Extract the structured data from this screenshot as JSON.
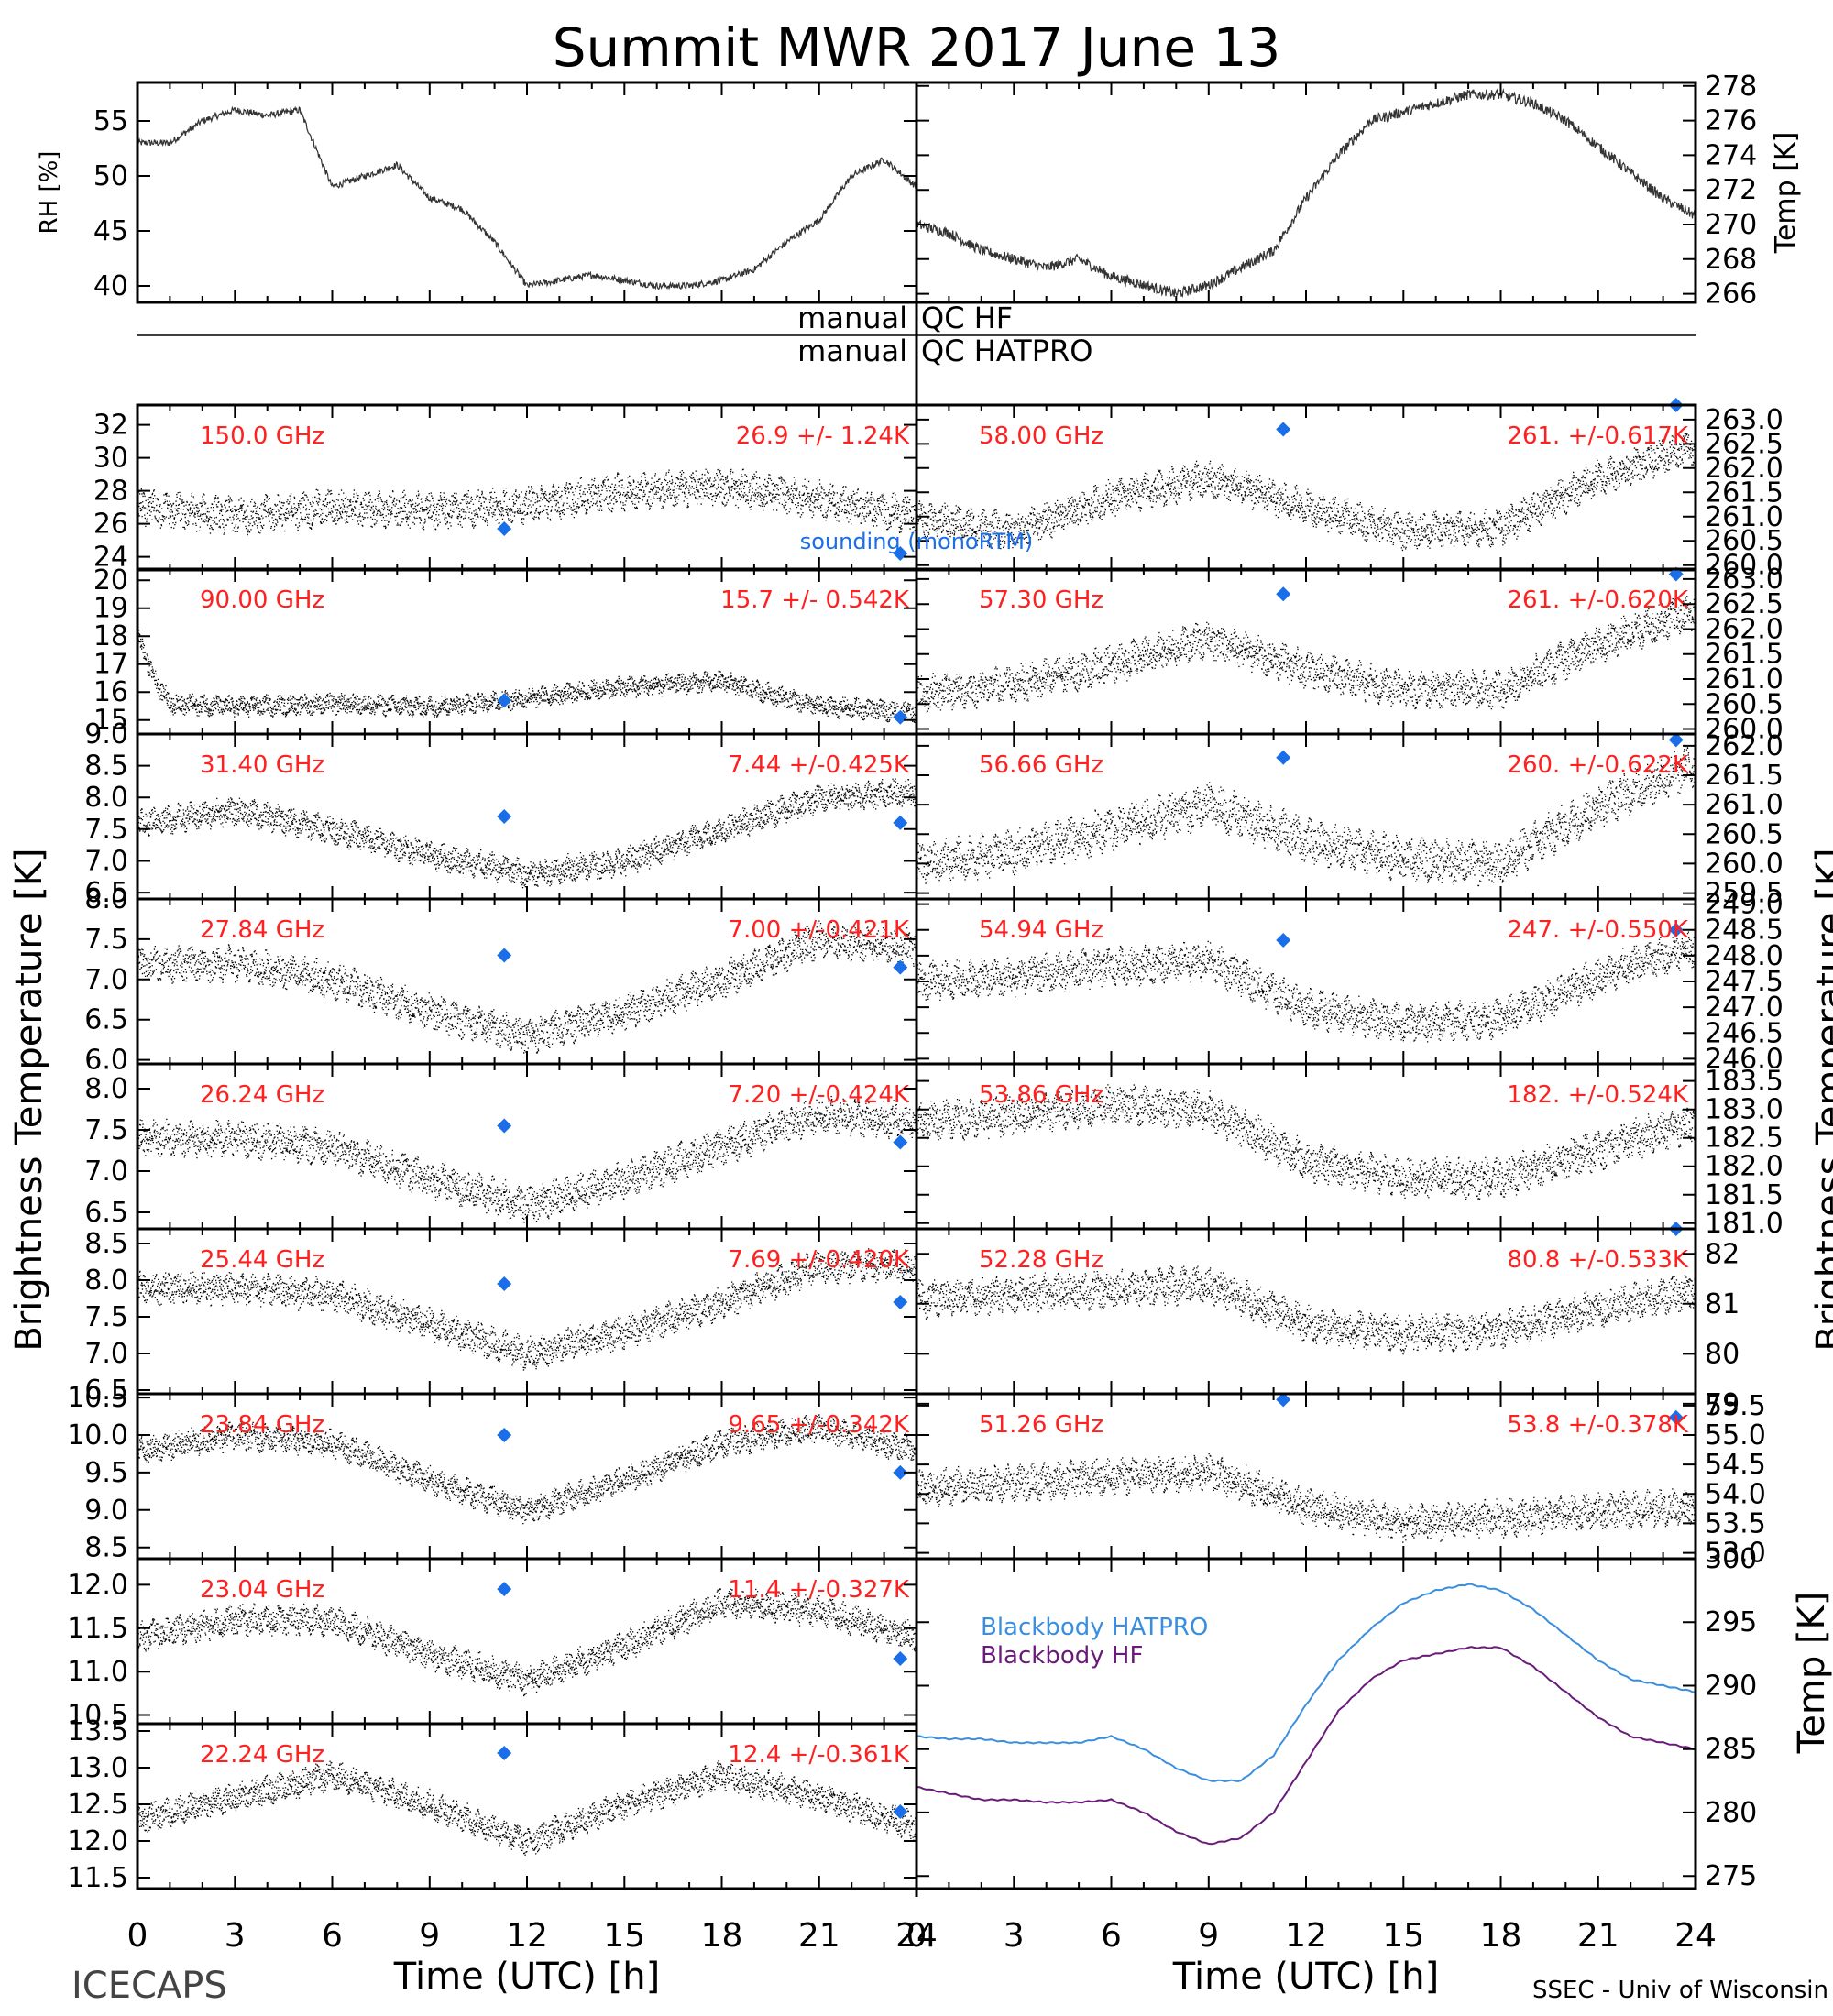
{
  "title": "Summit MWR 2017 June 13",
  "footer": {
    "left": "ICECAPS",
    "right": "SSEC - Univ of Wisconsin"
  },
  "xlabel": "Time (UTC) [h]",
  "left_ylabel": "Brightness Temperature [K]",
  "right_ylabel": "Brightness Temperature [K]",
  "qc": {
    "left": [
      "manual",
      "manual"
    ],
    "right": [
      "QC HF",
      "QC HATPRO"
    ]
  },
  "sounding_label": "sounding (monoRTM)",
  "colors": {
    "trace": "#000000",
    "sounding": "#1a6ee8",
    "label": "#ff2020",
    "hatpro": "#3a8ee0",
    "hf": "#6a1b7a"
  },
  "chart_data": [
    {
      "type": "line",
      "panel": "met-rh",
      "ylabel": "RH [%]",
      "xlim": [
        0,
        24
      ],
      "ylim": [
        38.5,
        58.5
      ],
      "yticks": [
        "40",
        "45",
        "50",
        "55"
      ],
      "x": [
        0,
        1,
        2,
        3,
        4,
        5,
        6,
        7,
        8,
        9,
        10,
        11,
        12,
        13,
        14,
        15,
        16,
        17,
        18,
        19,
        20,
        21,
        22,
        23,
        24
      ],
      "y": [
        53,
        53,
        55,
        56,
        55.5,
        56,
        49,
        50,
        51,
        48,
        47,
        44,
        40,
        40.5,
        41,
        40.5,
        40,
        40,
        40.5,
        41.5,
        44,
        46,
        50,
        51.5,
        49
      ]
    },
    {
      "type": "line",
      "panel": "met-temp",
      "ylabel": "Temp [K]",
      "xlim": [
        0,
        24
      ],
      "ylim": [
        265.5,
        278.2
      ],
      "yticks": [
        "266",
        "268",
        "270",
        "272",
        "274",
        "276",
        "278"
      ],
      "x": [
        0,
        1,
        2,
        3,
        4,
        5,
        6,
        7,
        8,
        9,
        10,
        11,
        12,
        13,
        14,
        15,
        16,
        17,
        18,
        19,
        20,
        21,
        22,
        23,
        24
      ],
      "y": [
        270,
        269.5,
        268.5,
        268,
        267.5,
        268,
        267,
        266.5,
        266,
        266.5,
        267.5,
        268.5,
        271.5,
        274,
        276,
        276.5,
        277,
        277.5,
        277.5,
        277,
        276,
        274.5,
        273,
        271.5,
        270.5
      ]
    },
    {
      "type": "scatter",
      "panel": "left-1",
      "frequency": "150.0 GHz",
      "stat": "26.9 +/-  1.24K",
      "xlim": [
        0,
        24
      ],
      "ylim": [
        23.2,
        33.2
      ],
      "yticks": [
        "24",
        "26",
        "28",
        "30",
        "32"
      ],
      "noise": 0.9,
      "x": [
        0,
        3,
        6,
        9,
        12,
        15,
        18,
        21,
        24
      ],
      "y": [
        27,
        26.5,
        27,
        26.8,
        27.2,
        28,
        28.3,
        27.5,
        26.5
      ],
      "sounding": [
        {
          "x": 11.3,
          "y": 25.7
        },
        {
          "x": 23.5,
          "y": 24.2
        }
      ]
    },
    {
      "type": "scatter",
      "panel": "left-2",
      "frequency": "90.00 GHz",
      "stat": "15.7 +/- 0.542K",
      "xlim": [
        0,
        24
      ],
      "ylim": [
        14.5,
        20.4
      ],
      "yticks": [
        "15",
        "16",
        "17",
        "18",
        "19",
        "20"
      ],
      "noise": 0.3,
      "x": [
        0,
        0.5,
        1,
        3,
        6,
        9,
        12,
        15,
        18,
        21,
        24
      ],
      "y": [
        18,
        16.5,
        15.6,
        15.5,
        15.6,
        15.5,
        15.8,
        16.2,
        16.4,
        15.5,
        15.3
      ],
      "sounding": [
        {
          "x": 11.3,
          "y": 15.7
        },
        {
          "x": 23.5,
          "y": 15.1
        }
      ]
    },
    {
      "type": "scatter",
      "panel": "left-3",
      "frequency": "31.40 GHz",
      "stat": "7.44 +/-0.425K",
      "xlim": [
        0,
        24
      ],
      "ylim": [
        6.4,
        9.0
      ],
      "yticks": [
        "6.5",
        "7.0",
        "7.5",
        "8.0",
        "8.5",
        "9.0"
      ],
      "noise": 0.18,
      "x": [
        0,
        3,
        6,
        9,
        12,
        15,
        18,
        21,
        24
      ],
      "y": [
        7.6,
        7.8,
        7.5,
        7.1,
        6.8,
        7.0,
        7.5,
        8.0,
        8.1
      ],
      "sounding": [
        {
          "x": 11.3,
          "y": 7.7
        },
        {
          "x": 23.5,
          "y": 7.6
        }
      ]
    },
    {
      "type": "scatter",
      "panel": "left-4",
      "frequency": "27.84 GHz",
      "stat": "7.00 +/-0.421K",
      "xlim": [
        0,
        24
      ],
      "ylim": [
        5.95,
        8.0
      ],
      "yticks": [
        "6.0",
        "6.5",
        "7.0",
        "7.5",
        "8.0"
      ],
      "noise": 0.18,
      "x": [
        0,
        3,
        6,
        9,
        12,
        15,
        18,
        21,
        24
      ],
      "y": [
        7.2,
        7.2,
        7.0,
        6.6,
        6.3,
        6.6,
        7.0,
        7.5,
        7.4
      ],
      "sounding": [
        {
          "x": 11.3,
          "y": 7.3
        },
        {
          "x": 23.5,
          "y": 7.15
        }
      ]
    },
    {
      "type": "scatter",
      "panel": "left-5",
      "frequency": "26.24 GHz",
      "stat": "7.20 +/-0.424K",
      "xlim": [
        0,
        24
      ],
      "ylim": [
        6.3,
        8.3
      ],
      "yticks": [
        "6.5",
        "7.0",
        "7.5",
        "8.0"
      ],
      "noise": 0.18,
      "x": [
        0,
        3,
        6,
        9,
        12,
        15,
        18,
        21,
        24
      ],
      "y": [
        7.4,
        7.4,
        7.3,
        6.9,
        6.6,
        6.9,
        7.3,
        7.7,
        7.6
      ],
      "sounding": [
        {
          "x": 11.3,
          "y": 7.55
        },
        {
          "x": 23.5,
          "y": 7.35
        }
      ]
    },
    {
      "type": "scatter",
      "panel": "left-6",
      "frequency": "25.44 GHz",
      "stat": "7.69 +/-0.420K",
      "xlim": [
        0,
        24
      ],
      "ylim": [
        6.45,
        8.7
      ],
      "yticks": [
        "6.5",
        "7.0",
        "7.5",
        "8.0",
        "8.5"
      ],
      "noise": 0.18,
      "x": [
        0,
        3,
        6,
        9,
        12,
        15,
        18,
        21,
        24
      ],
      "y": [
        7.9,
        7.9,
        7.8,
        7.4,
        7.0,
        7.3,
        7.7,
        8.2,
        8.2
      ],
      "sounding": [
        {
          "x": 11.3,
          "y": 7.95
        },
        {
          "x": 23.5,
          "y": 7.7
        }
      ]
    },
    {
      "type": "scatter",
      "panel": "left-7",
      "frequency": "23.84 GHz",
      "stat": "9.65 +/-0.342K",
      "xlim": [
        0,
        24
      ],
      "ylim": [
        8.35,
        10.55
      ],
      "yticks": [
        "8.5",
        "9.0",
        "9.5",
        "10.0",
        "10.5"
      ],
      "noise": 0.15,
      "x": [
        0,
        3,
        6,
        9,
        12,
        15,
        18,
        21,
        24
      ],
      "y": [
        9.8,
        10.0,
        9.9,
        9.4,
        9.0,
        9.4,
        9.9,
        10.1,
        9.8
      ],
      "sounding": [
        {
          "x": 11.3,
          "y": 10.0
        },
        {
          "x": 23.5,
          "y": 9.5
        }
      ]
    },
    {
      "type": "scatter",
      "panel": "left-8",
      "frequency": "23.04 GHz",
      "stat": "11.4 +/-0.327K",
      "xlim": [
        0,
        24
      ],
      "ylim": [
        10.4,
        12.3
      ],
      "yticks": [
        "10.5",
        "11.0",
        "11.5",
        "12.0"
      ],
      "noise": 0.14,
      "x": [
        0,
        3,
        6,
        9,
        12,
        15,
        18,
        21,
        24
      ],
      "y": [
        11.4,
        11.6,
        11.6,
        11.2,
        10.9,
        11.3,
        11.8,
        11.7,
        11.4
      ],
      "sounding": [
        {
          "x": 11.3,
          "y": 11.95
        },
        {
          "x": 23.5,
          "y": 11.15
        }
      ]
    },
    {
      "type": "scatter",
      "panel": "left-9",
      "frequency": "22.24 GHz",
      "stat": "12.4 +/-0.361K",
      "xlim": [
        0,
        24
      ],
      "ylim": [
        11.35,
        13.6
      ],
      "yticks": [
        "11.5",
        "12.0",
        "12.5",
        "13.0",
        "13.5"
      ],
      "noise": 0.16,
      "x": [
        0,
        3,
        6,
        9,
        12,
        15,
        18,
        21,
        24
      ],
      "y": [
        12.3,
        12.6,
        12.9,
        12.5,
        12.0,
        12.5,
        12.9,
        12.6,
        12.2
      ],
      "sounding": [
        {
          "x": 11.3,
          "y": 13.2
        },
        {
          "x": 23.5,
          "y": 12.4
        }
      ]
    },
    {
      "type": "scatter",
      "panel": "right-1",
      "frequency": "58.00 GHz",
      "stat": "261. +/-0.617K",
      "xlim": [
        0,
        24
      ],
      "ylim": [
        259.9,
        263.3
      ],
      "yticks": [
        "260.0",
        "260.5",
        "261.0",
        "261.5",
        "262.0",
        "262.5",
        "263.0"
      ],
      "noise": 0.3,
      "x": [
        0,
        3,
        6,
        9,
        12,
        15,
        18,
        21,
        24
      ],
      "y": [
        261.0,
        260.7,
        261.4,
        261.8,
        261.2,
        260.7,
        260.8,
        261.8,
        262.5
      ],
      "sounding": [
        {
          "x": 11.3,
          "y": 262.8
        },
        {
          "x": 23.4,
          "y": 263.3
        }
      ]
    },
    {
      "type": "scatter",
      "panel": "right-2",
      "frequency": "57.30 GHz",
      "stat": "261. +/-0.620K",
      "xlim": [
        0,
        24
      ],
      "ylim": [
        259.9,
        263.2
      ],
      "yticks": [
        "260.0",
        "260.5",
        "261.0",
        "261.5",
        "262.0",
        "262.5",
        "263.0"
      ],
      "noise": 0.3,
      "x": [
        0,
        3,
        6,
        9,
        12,
        15,
        18,
        21,
        24
      ],
      "y": [
        260.7,
        260.9,
        261.3,
        261.8,
        261.2,
        260.8,
        260.8,
        261.7,
        262.4
      ],
      "sounding": [
        {
          "x": 11.3,
          "y": 262.7
        },
        {
          "x": 23.4,
          "y": 263.1
        }
      ]
    },
    {
      "type": "scatter",
      "panel": "right-3",
      "frequency": "56.66 GHz",
      "stat": "260. +/-0.622K",
      "xlim": [
        0,
        24
      ],
      "ylim": [
        259.4,
        262.2
      ],
      "yticks": [
        "259.5",
        "260.0",
        "260.5",
        "261.0",
        "261.5",
        "262.0"
      ],
      "noise": 0.3,
      "x": [
        0,
        3,
        6,
        9,
        12,
        15,
        18,
        21,
        24
      ],
      "y": [
        260.0,
        260.2,
        260.6,
        261.0,
        260.4,
        260.1,
        260.0,
        261.0,
        261.7
      ],
      "sounding": [
        {
          "x": 11.3,
          "y": 261.8
        },
        {
          "x": 23.4,
          "y": 262.1
        }
      ]
    },
    {
      "type": "scatter",
      "panel": "right-4",
      "frequency": "54.94 GHz",
      "stat": "247. +/-0.550K",
      "xlim": [
        0,
        24
      ],
      "ylim": [
        245.9,
        249.1
      ],
      "yticks": [
        "246.0",
        "246.5",
        "247.0",
        "247.5",
        "248.0",
        "248.5",
        "249.0"
      ],
      "noise": 0.3,
      "x": [
        0,
        3,
        6,
        9,
        12,
        15,
        18,
        21,
        24
      ],
      "y": [
        247.5,
        247.6,
        247.8,
        247.9,
        247.0,
        246.7,
        246.8,
        247.6,
        248.2
      ],
      "sounding": [
        {
          "x": 11.3,
          "y": 248.3
        },
        {
          "x": 23.4,
          "y": 248.5
        }
      ]
    },
    {
      "type": "scatter",
      "panel": "right-5",
      "frequency": "53.86 GHz",
      "stat": "182. +/-0.524K",
      "xlim": [
        0,
        24
      ],
      "ylim": [
        180.9,
        183.8
      ],
      "yticks": [
        "181.0",
        "181.5",
        "182.0",
        "182.5",
        "183.0",
        "183.5"
      ],
      "noise": 0.28,
      "x": [
        0,
        3,
        6,
        9,
        12,
        15,
        18,
        21,
        24
      ],
      "y": [
        182.8,
        182.9,
        183.1,
        183.0,
        182.1,
        181.8,
        181.8,
        182.3,
        182.8
      ]
    },
    {
      "type": "scatter",
      "panel": "right-6",
      "frequency": "52.28 GHz",
      "stat": "80.8 +/-0.533K",
      "xlim": [
        0,
        24
      ],
      "ylim": [
        79.2,
        82.5
      ],
      "yticks": [
        "79",
        "80",
        "81",
        "82"
      ],
      "noise": 0.3,
      "x": [
        0,
        3,
        6,
        9,
        12,
        15,
        18,
        21,
        24
      ],
      "y": [
        81.1,
        81.2,
        81.3,
        81.4,
        80.6,
        80.4,
        80.5,
        80.9,
        81.3
      ],
      "sounding": [
        {
          "x": 23.4,
          "y": 82.5
        }
      ]
    },
    {
      "type": "scatter",
      "panel": "right-7",
      "frequency": "51.26 GHz",
      "stat": "53.8 +/-0.378K",
      "xlim": [
        0,
        24
      ],
      "ylim": [
        52.9,
        55.7
      ],
      "yticks": [
        "53.0",
        "53.5",
        "54.0",
        "54.5",
        "55.0",
        "55.5"
      ],
      "noise": 0.25,
      "x": [
        0,
        3,
        6,
        9,
        12,
        15,
        18,
        21,
        24
      ],
      "y": [
        54.1,
        54.2,
        54.3,
        54.4,
        53.8,
        53.5,
        53.6,
        53.7,
        53.8
      ],
      "sounding": [
        {
          "x": 11.3,
          "y": 55.6
        },
        {
          "x": 23.4,
          "y": 55.3
        }
      ]
    },
    {
      "type": "line",
      "panel": "blackbody",
      "ylabel": "Temp [K]",
      "xlim": [
        0,
        24
      ],
      "ylim": [
        274,
        300
      ],
      "yticks": [
        "275",
        "280",
        "285",
        "290",
        "295",
        "300"
      ],
      "x": [
        0,
        1,
        2,
        3,
        4,
        5,
        6,
        7,
        8,
        9,
        10,
        11,
        12,
        13,
        14,
        15,
        16,
        17,
        18,
        19,
        20,
        21,
        22,
        23,
        24
      ],
      "series": [
        {
          "name": "Blackbody HATPRO",
          "values": [
            286,
            285.8,
            285.8,
            285.5,
            285.5,
            285.5,
            286,
            285,
            283.5,
            282.5,
            282.5,
            284.5,
            288.5,
            292,
            294.5,
            296.5,
            297.5,
            298,
            297.5,
            296,
            294,
            292,
            290.5,
            290,
            289.5
          ]
        },
        {
          "name": "Blackbody HF",
          "values": [
            282,
            281.5,
            281,
            281,
            280.8,
            280.8,
            281,
            280,
            278.5,
            277.5,
            278,
            280,
            284,
            288,
            290.5,
            292,
            292.5,
            293,
            293,
            291.5,
            289.5,
            287.5,
            286,
            285.5,
            285
          ]
        }
      ]
    }
  ]
}
